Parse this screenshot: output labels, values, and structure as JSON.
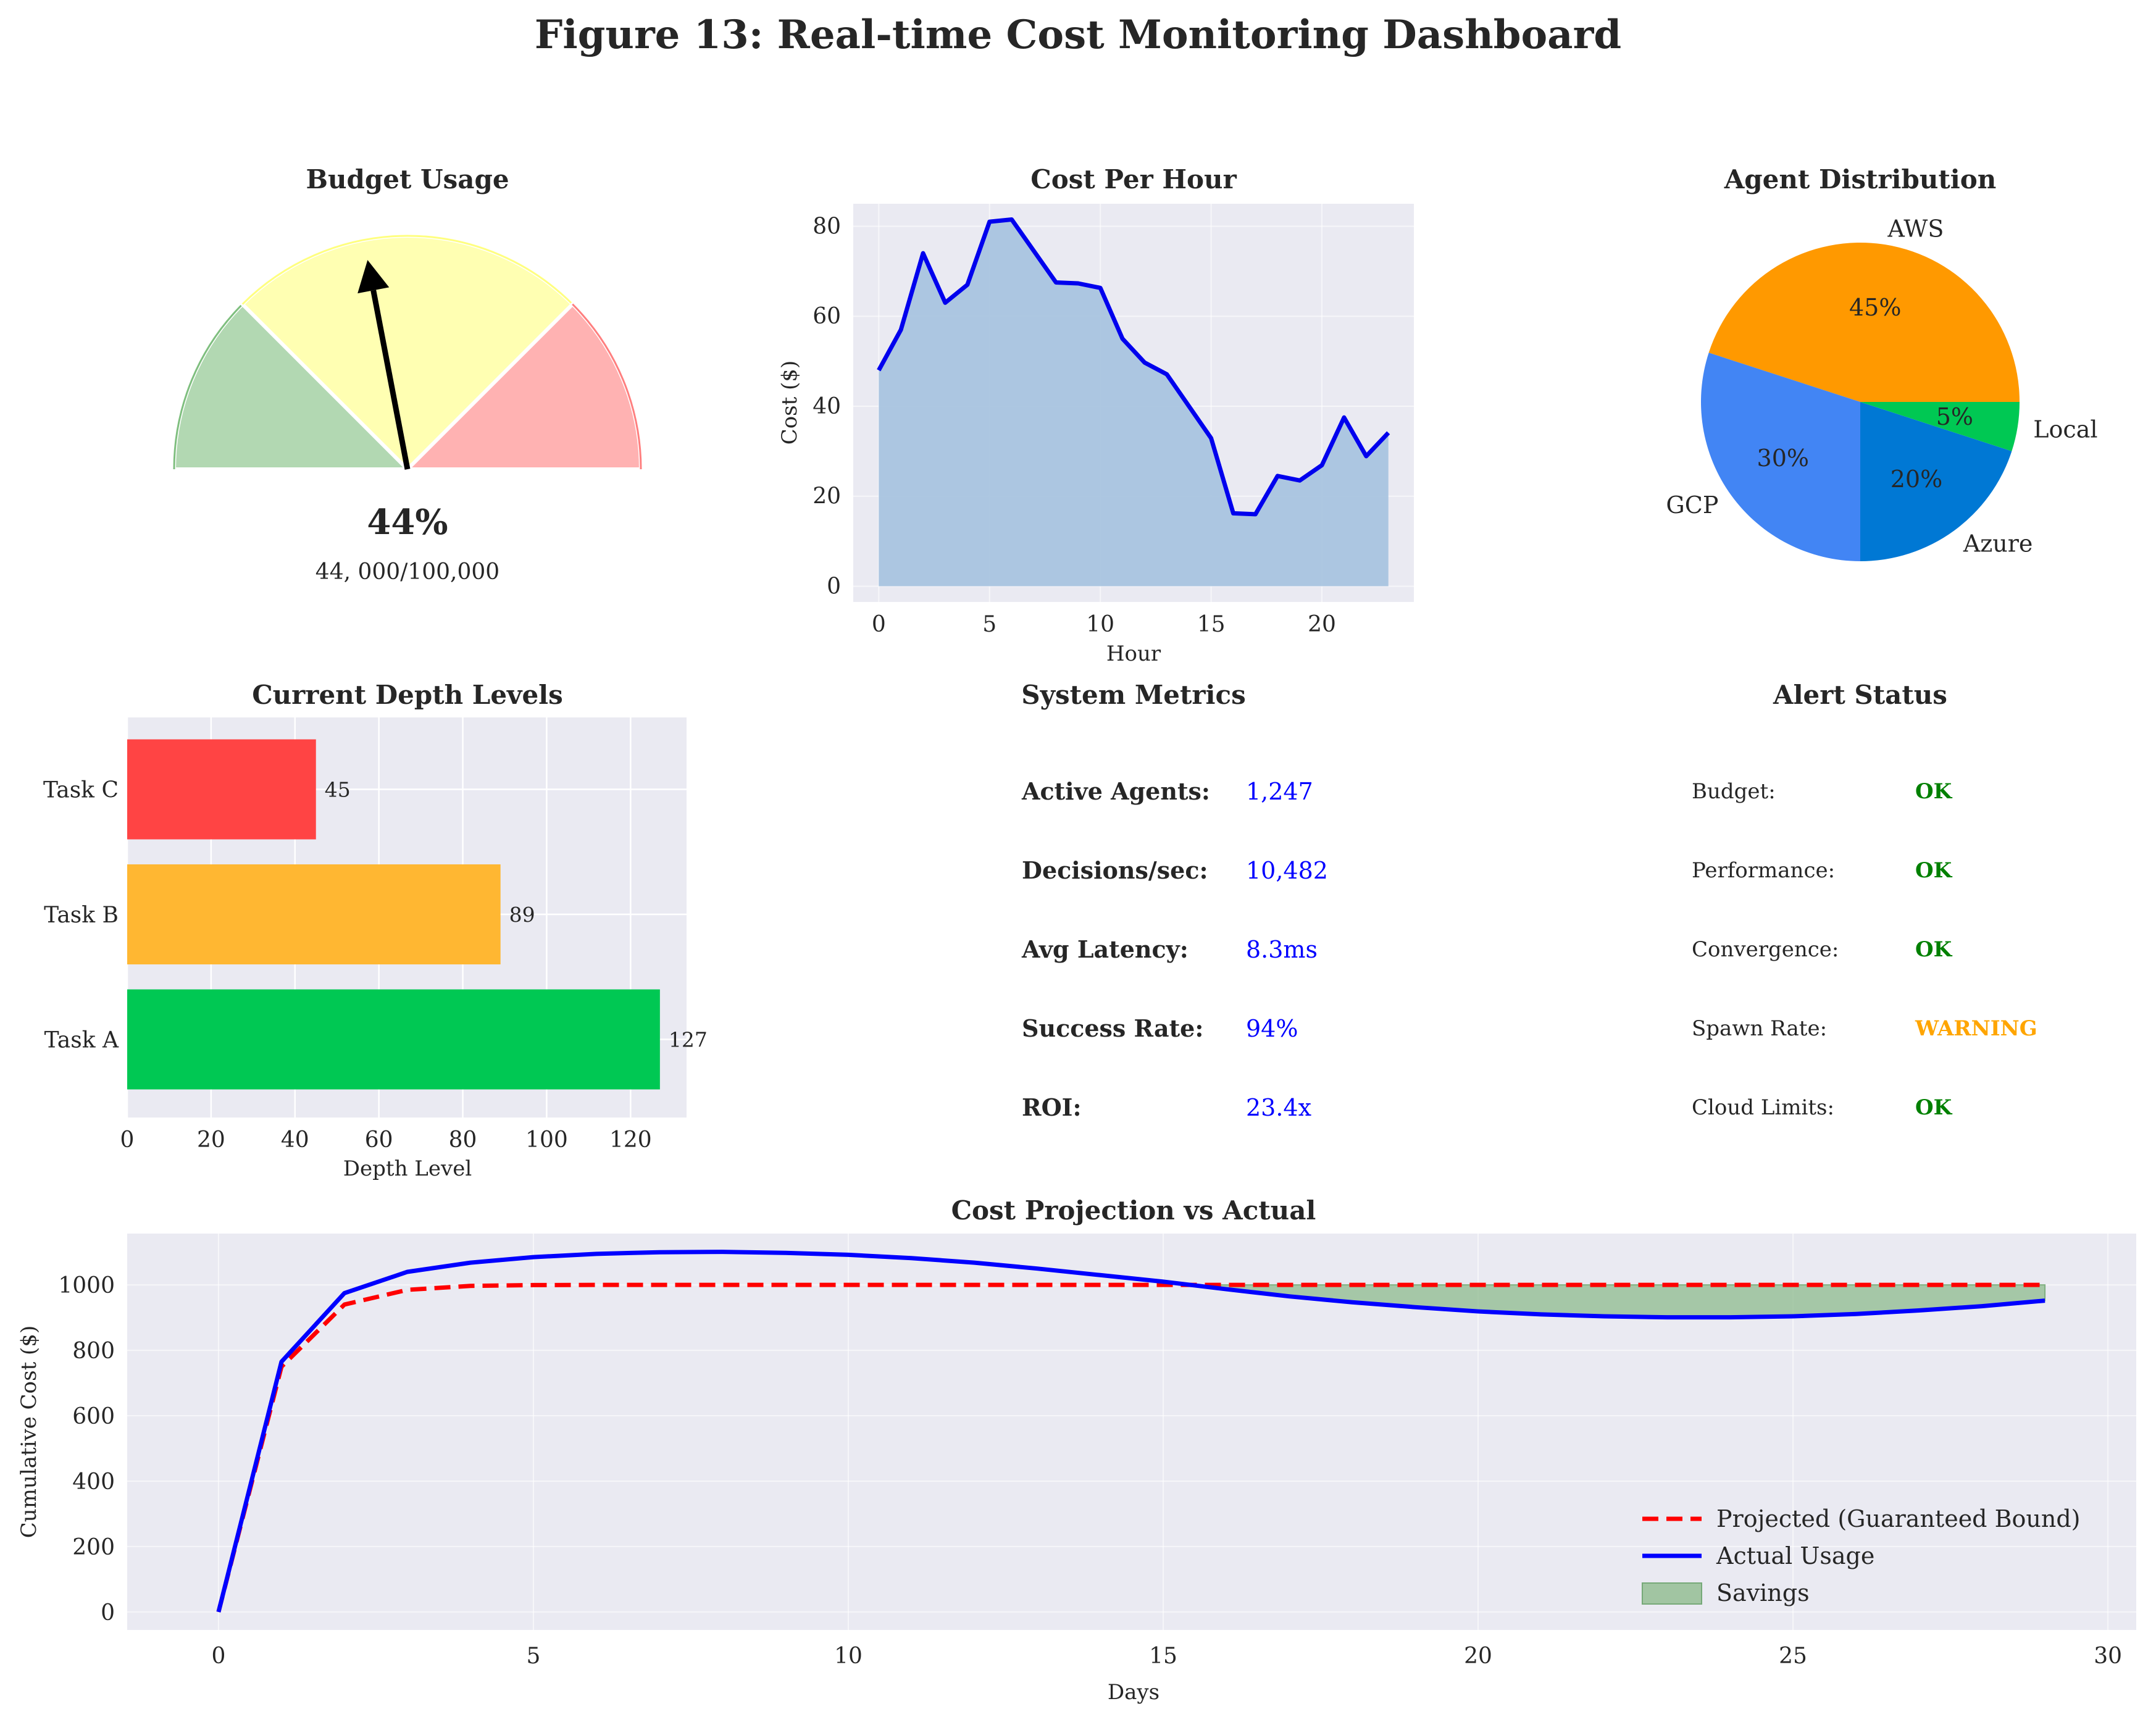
{
  "figure_title": "Figure 13: Real-time Cost Monitoring Dashboard",
  "colors": {
    "axes_bg": "#eaeaf2",
    "grid": "#ffffff",
    "line_blue": "#0000ee",
    "area_fill": "#a9c4df",
    "ok": "#008000",
    "warning": "#ffa500"
  },
  "chart_data": [
    {
      "id": "budget",
      "type": "gauge",
      "title": "Budget Usage",
      "value_percent": 44,
      "percent_label": "44%",
      "amount_label": "44, 000/100,000",
      "zones": [
        {
          "from": 0,
          "to": 25,
          "color": "#b2d8b2"
        },
        {
          "from": 25,
          "to": 75,
          "color": "#ffffb2"
        },
        {
          "from": 75,
          "to": 100,
          "color": "#ffb2b2"
        }
      ],
      "zone_edges": [
        "#7fbf7f",
        "#ffff7f",
        "#ff7f7f"
      ]
    },
    {
      "id": "cost_per_hour",
      "type": "area",
      "title": "Cost Per Hour",
      "xlabel": "Hour",
      "ylabel": "Cost ($)",
      "x": [
        0,
        1,
        2,
        3,
        4,
        5,
        6,
        7,
        8,
        9,
        10,
        11,
        12,
        13,
        14,
        15,
        16,
        17,
        18,
        19,
        20,
        21,
        22,
        23
      ],
      "y": [
        48,
        57,
        74,
        63,
        67,
        81,
        81.5,
        74.5,
        67.5,
        67.3,
        66.3,
        55,
        49.7,
        47.1,
        40,
        32.9,
        16.2,
        16,
        24.5,
        23.5,
        26.9,
        37.5,
        28.9,
        34.1
      ],
      "xlim": [
        -1.15,
        24.15
      ],
      "ylim": [
        -3.5,
        85
      ],
      "xticks": [
        0,
        5,
        10,
        15,
        20
      ],
      "yticks": [
        0,
        20,
        40,
        60,
        80
      ]
    },
    {
      "id": "agent_distribution",
      "type": "pie",
      "title": "Agent Distribution",
      "slices": [
        {
          "label": "AWS",
          "value": 45,
          "pct_label": "45%",
          "color": "#ff9900"
        },
        {
          "label": "GCP",
          "value": 30,
          "pct_label": "30%",
          "color": "#4285f4"
        },
        {
          "label": "Azure",
          "value": 20,
          "pct_label": "20%",
          "color": "#0078d4"
        },
        {
          "label": "Local",
          "value": 5,
          "pct_label": "5%",
          "color": "#00c853"
        }
      ]
    },
    {
      "id": "depth_levels",
      "type": "bar",
      "orientation": "horizontal",
      "title": "Current Depth Levels",
      "xlabel": "Depth Level",
      "categories": [
        "Task A",
        "Task B",
        "Task C"
      ],
      "values": [
        127,
        89,
        45
      ],
      "value_labels": [
        "127",
        "89",
        "45"
      ],
      "colors": [
        "#00c853",
        "#ffb732",
        "#ff4444"
      ],
      "xlim": [
        0,
        133.35
      ],
      "xticks": [
        0,
        20,
        40,
        60,
        80,
        100,
        120
      ]
    },
    {
      "id": "cost_projection",
      "type": "line",
      "title": "Cost Projection vs Actual",
      "xlabel": "Days",
      "ylabel": "Cumulative Cost ($)",
      "x": [
        0,
        1,
        2,
        3,
        4,
        5,
        6,
        7,
        8,
        9,
        10,
        11,
        12,
        13,
        14,
        15,
        16,
        17,
        18,
        19,
        20,
        21,
        22,
        23,
        24,
        25,
        26,
        27,
        28,
        29
      ],
      "series": [
        {
          "name": "Projected (Guaranteed Bound)",
          "color": "#ff0000",
          "dash": true,
          "values": [
            0,
            750,
            940,
            985,
            997,
            999.5,
            1000,
            1000,
            1000,
            1000,
            1000,
            1000,
            1000,
            1000,
            1000,
            1000,
            1000,
            1000,
            1000,
            1000,
            1000,
            1000,
            1000,
            1000,
            1000,
            1000,
            1000,
            1000,
            1000,
            1000
          ]
        },
        {
          "name": "Actual Usage",
          "color": "#0000ff",
          "dash": false,
          "values": [
            0,
            765,
            975,
            1040,
            1068,
            1085,
            1095,
            1100,
            1101,
            1098,
            1092,
            1082,
            1068,
            1050,
            1030,
            1010,
            987,
            965,
            947,
            932,
            919,
            910,
            904,
            901,
            901,
            904,
            911,
            922,
            935,
            952
          ]
        }
      ],
      "savings_label": "Savings",
      "savings_color": "#8fbc8f",
      "savings_from_x": 15.7,
      "xlim": [
        -1.45,
        30.45
      ],
      "ylim": [
        -55,
        1157
      ],
      "xticks": [
        0,
        5,
        10,
        15,
        20,
        25,
        30
      ],
      "yticks": [
        0,
        200,
        400,
        600,
        800,
        1000
      ]
    }
  ],
  "system_metrics": {
    "title": "System Metrics",
    "rows": [
      {
        "label": "Active Agents:",
        "value": "1,247"
      },
      {
        "label": "Decisions/sec:",
        "value": "10,482"
      },
      {
        "label": "Avg Latency:",
        "value": "8.3ms"
      },
      {
        "label": "Success Rate:",
        "value": "94%"
      },
      {
        "label": "ROI:",
        "value": "23.4x"
      }
    ]
  },
  "alert_status": {
    "title": "Alert Status",
    "rows": [
      {
        "label": "Budget:",
        "value": "OK",
        "level": "ok"
      },
      {
        "label": "Performance:",
        "value": "OK",
        "level": "ok"
      },
      {
        "label": "Convergence:",
        "value": "OK",
        "level": "ok"
      },
      {
        "label": "Spawn Rate:",
        "value": "WARNING",
        "level": "warning"
      },
      {
        "label": "Cloud Limits:",
        "value": "OK",
        "level": "ok"
      }
    ]
  }
}
